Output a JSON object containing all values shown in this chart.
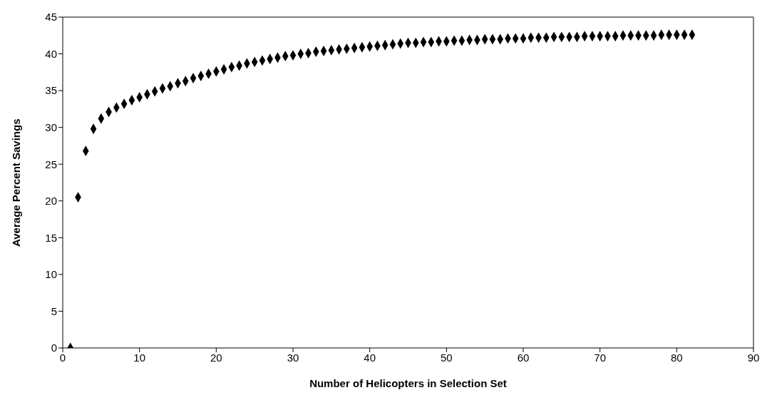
{
  "chart_data": {
    "type": "scatter",
    "xlabel": "Number of Helicopters in Selection Set",
    "ylabel": "Average Percent Savings",
    "x": [
      1,
      2,
      3,
      4,
      5,
      6,
      7,
      8,
      9,
      10,
      11,
      12,
      13,
      14,
      15,
      16,
      17,
      18,
      19,
      20,
      21,
      22,
      23,
      24,
      25,
      26,
      27,
      28,
      29,
      30,
      31,
      32,
      33,
      34,
      35,
      36,
      37,
      38,
      39,
      40,
      41,
      42,
      43,
      44,
      45,
      46,
      47,
      48,
      49,
      50,
      51,
      52,
      53,
      54,
      55,
      56,
      57,
      58,
      59,
      60,
      61,
      62,
      63,
      64,
      65,
      66,
      67,
      68,
      69,
      70,
      71,
      72,
      73,
      74,
      75,
      76,
      77,
      78,
      79,
      80,
      81,
      82
    ],
    "values": [
      0,
      20.5,
      26.8,
      29.8,
      31.2,
      32.1,
      32.7,
      33.2,
      33.7,
      34.1,
      34.5,
      34.9,
      35.3,
      35.6,
      36.0,
      36.3,
      36.7,
      37.0,
      37.3,
      37.6,
      37.9,
      38.2,
      38.4,
      38.7,
      38.9,
      39.1,
      39.3,
      39.5,
      39.7,
      39.8,
      40.0,
      40.1,
      40.3,
      40.4,
      40.5,
      40.6,
      40.7,
      40.8,
      40.9,
      41.0,
      41.1,
      41.2,
      41.3,
      41.4,
      41.5,
      41.5,
      41.6,
      41.6,
      41.7,
      41.7,
      41.8,
      41.8,
      41.9,
      41.9,
      42.0,
      42.0,
      42.0,
      42.1,
      42.1,
      42.1,
      42.2,
      42.2,
      42.2,
      42.3,
      42.3,
      42.3,
      42.3,
      42.4,
      42.4,
      42.4,
      42.4,
      42.4,
      42.5,
      42.5,
      42.5,
      42.5,
      42.5,
      42.6,
      42.6,
      42.6,
      42.6,
      42.6
    ],
    "color": "#000000",
    "marker": "diamond",
    "xlim": [
      0,
      90
    ],
    "xticks": [
      0,
      10,
      20,
      30,
      40,
      50,
      60,
      70,
      80,
      90
    ],
    "ylim": [
      0,
      45
    ],
    "yticks": [
      0,
      5,
      10,
      15,
      20,
      25,
      30,
      35,
      40,
      45
    ],
    "grid": false,
    "legend": false
  }
}
